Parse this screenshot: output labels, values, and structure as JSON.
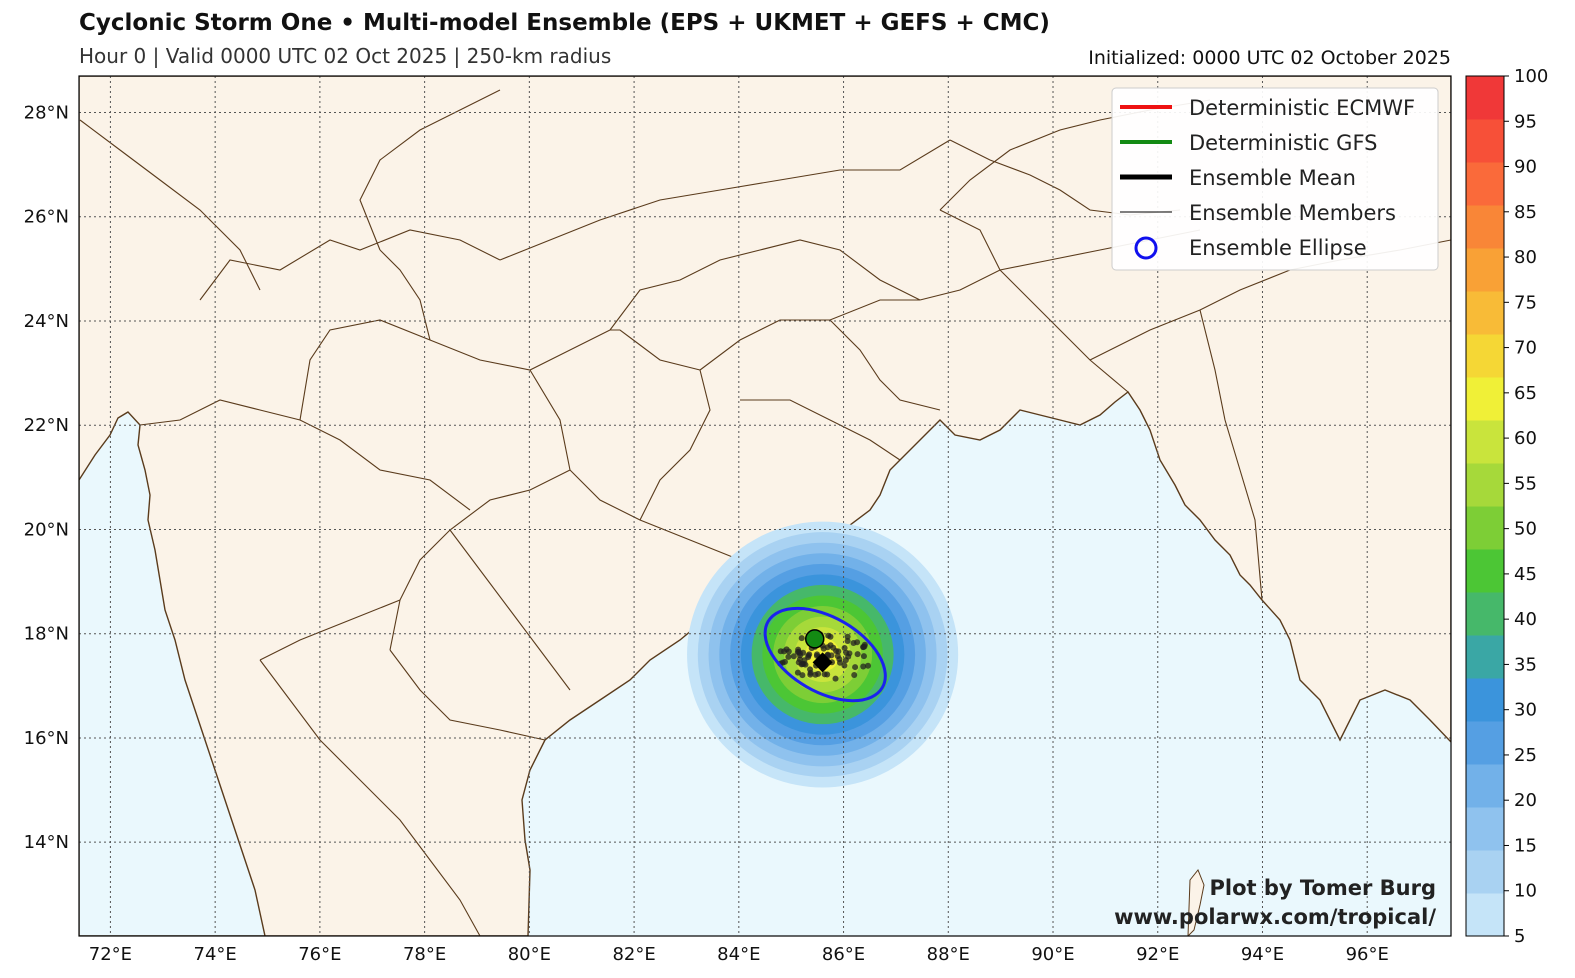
{
  "header": {
    "title": "Cyclonic Storm One • Multi-model Ensemble (EPS + UKMET + GEFS + CMC)",
    "subtitle": "Hour 0 | Valid 0000 UTC 02 Oct 2025 | 250-km radius",
    "initialized": "Initialized: 0000 UTC 02 October 2025"
  },
  "map": {
    "lon_range": [
      71.4,
      97.6
    ],
    "lat_range": [
      12.2,
      28.7
    ],
    "lon_ticks": [
      "72°E",
      "74°E",
      "76°E",
      "78°E",
      "80°E",
      "82°E",
      "84°E",
      "86°E",
      "88°E",
      "90°E",
      "92°E",
      "94°E",
      "96°E"
    ],
    "lat_ticks": [
      "14°N",
      "16°N",
      "18°N",
      "20°N",
      "22°N",
      "24°N",
      "26°N",
      "28°N"
    ],
    "colors": {
      "land": "#fbf3e8",
      "ocean": "#eaf8fd",
      "border": "#5a3b1c",
      "grid": "#555555"
    }
  },
  "legend": {
    "items": [
      {
        "label": "Deterministic ECMWF",
        "color": "#ee1111",
        "style": "line"
      },
      {
        "label": "Deterministic GFS",
        "color": "#138a13",
        "style": "line"
      },
      {
        "label": "Ensemble Mean",
        "color": "#000000",
        "style": "thick-line"
      },
      {
        "label": "Ensemble Members",
        "color": "#000000",
        "style": "thin-line"
      },
      {
        "label": "Ensemble Ellipse",
        "color": "#1010ee",
        "style": "circle"
      }
    ]
  },
  "colorbar": {
    "ticks": [
      "5",
      "10",
      "15",
      "20",
      "25",
      "30",
      "35",
      "40",
      "45",
      "50",
      "55",
      "60",
      "65",
      "70",
      "75",
      "80",
      "85",
      "90",
      "95",
      "100"
    ],
    "colors": [
      "#c5e4f8",
      "#a9d2f2",
      "#8fc2ee",
      "#72b1e9",
      "#559fe3",
      "#3b94dc",
      "#3aa7a5",
      "#46b86a",
      "#4cc635",
      "#7dce36",
      "#a6d93a",
      "#c9e43c",
      "#f0f037",
      "#f5d735",
      "#f8bb37",
      "#f9a136",
      "#f98637",
      "#fa6a3a",
      "#f75038",
      "#f03838"
    ]
  },
  "storm": {
    "center": {
      "lon": 85.6,
      "lat": 17.6
    },
    "gfs_position": {
      "lon": 85.45,
      "lat": 17.9
    },
    "mean_position": {
      "lon": 85.6,
      "lat": 17.45
    },
    "ellipse": {
      "center_lon": 85.65,
      "center_lat": 17.6,
      "semi_major_deg": 1.4,
      "semi_minor_deg": 0.55,
      "angle_deg": -30
    }
  },
  "credit": {
    "line1": "Plot by Tomer Burg",
    "line2": "www.polarwx.com/tropical/"
  }
}
